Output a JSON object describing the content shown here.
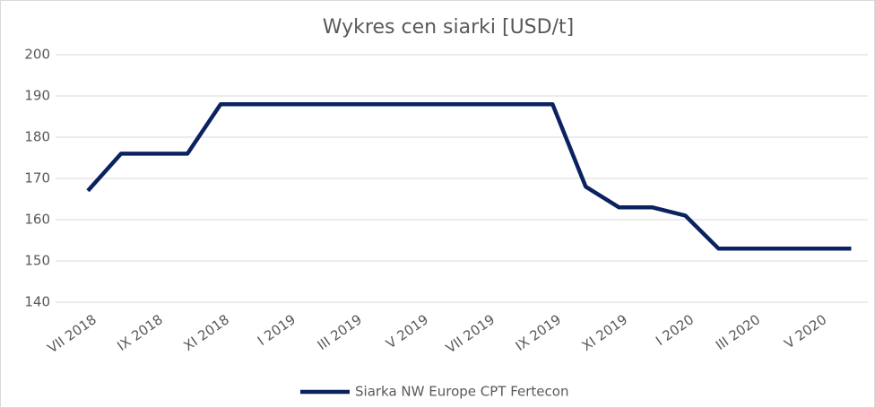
{
  "chart_data": {
    "type": "line",
    "title": "Wykres cen siarki [USD/t]",
    "categories": [
      "VII 2018",
      null,
      "IX 2018",
      null,
      "XI 2018",
      null,
      "I 2019",
      null,
      "III 2019",
      null,
      "V 2019",
      null,
      "VII 2019",
      null,
      "IX 2019",
      null,
      "XI 2019",
      null,
      "I 2020",
      null,
      "III 2020",
      null,
      "V 2020",
      null
    ],
    "series": [
      {
        "name": "Siarka NW Europe CPT Fertecon",
        "color": "#0b2260",
        "values": [
          167,
          176,
          176,
          176,
          188,
          188,
          188,
          188,
          188,
          188,
          188,
          188,
          188,
          188,
          188,
          168,
          163,
          163,
          161,
          153,
          153,
          153,
          153,
          153
        ]
      }
    ],
    "ylim": [
      140,
      200
    ],
    "yticks": [
      140,
      150,
      160,
      170,
      180,
      190,
      200
    ],
    "grid": true,
    "legend": "bottom"
  }
}
